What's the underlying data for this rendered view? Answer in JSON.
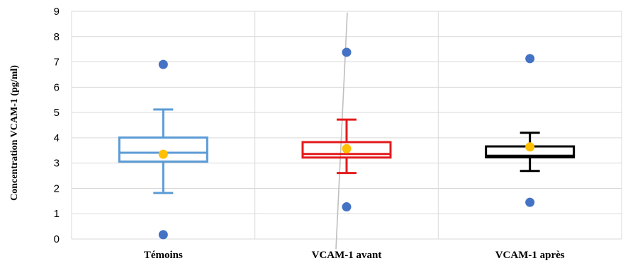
{
  "chart_data": {
    "type": "box",
    "title": "",
    "xlabel": "",
    "ylabel": "Concentration VCAM-1 (pg/ml)",
    "ylim": [
      0,
      9
    ],
    "y_ticks": [
      0,
      1,
      2,
      3,
      4,
      5,
      6,
      7,
      8,
      9
    ],
    "grid": true,
    "categories": [
      "Témoins",
      "VCAM-1 avant",
      "VCAM-1 après"
    ],
    "boxes": [
      {
        "category": "Témoins",
        "whisker_low": 1.82,
        "q1": 3.06,
        "median": 3.41,
        "q3": 4.01,
        "whisker_high": 5.12,
        "mean": 3.35,
        "color": "#5b9bd5",
        "outliers": [
          6.9,
          0.17
        ]
      },
      {
        "category": "VCAM-1 avant",
        "whisker_low": 2.61,
        "q1": 3.22,
        "median": 3.36,
        "q3": 3.83,
        "whisker_high": 4.72,
        "mean": 3.57,
        "color": "#e41a1c",
        "outliers": [
          7.38,
          1.27
        ]
      },
      {
        "category": "VCAM-1 après",
        "whisker_low": 2.69,
        "q1": 3.23,
        "median": 3.29,
        "q3": 3.66,
        "whisker_high": 4.2,
        "mean": 3.64,
        "color": "#000000",
        "outliers": [
          7.13,
          1.45
        ]
      }
    ],
    "colors": {
      "outlier": "#4472c4",
      "mean": "#ffc000",
      "grid": "#d9d9d9",
      "stray_line": "#bfbfbf"
    }
  }
}
